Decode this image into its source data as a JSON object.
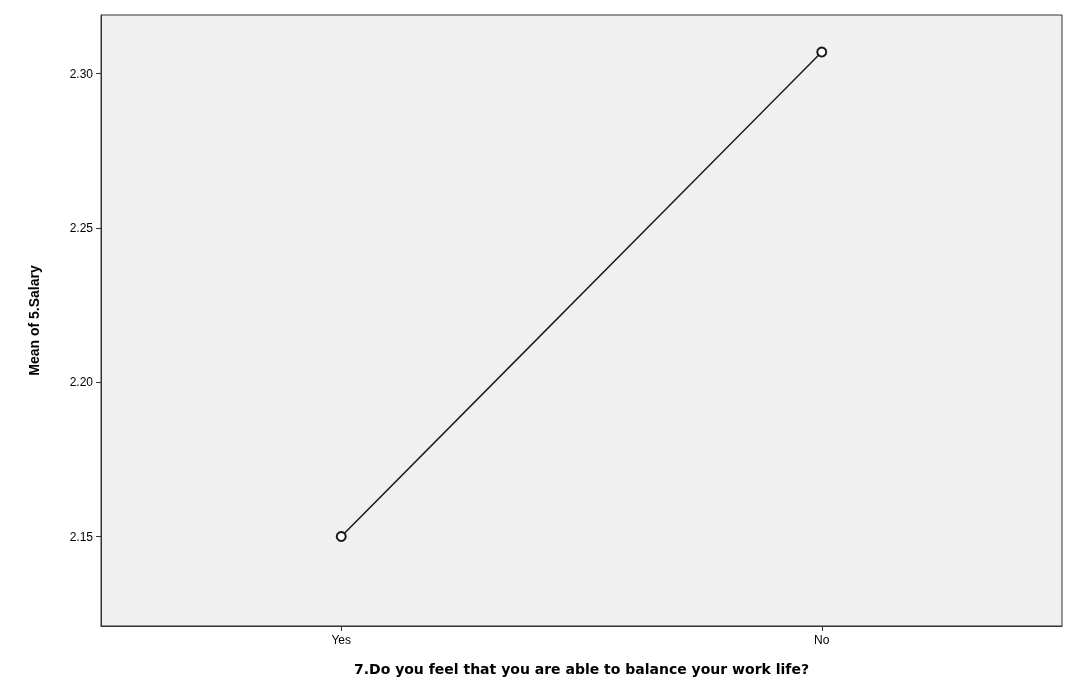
{
  "chart_data": {
    "type": "line",
    "xlabel": "7.Do you feel that you are able to balance your work life?",
    "ylabel": "Mean of 5.Salary",
    "categories": [
      "Yes",
      "No"
    ],
    "series": [
      {
        "color": "#1a1a1a",
        "values": [
          2.15,
          2.307
        ]
      }
    ],
    "ylim": [
      2.121,
      2.319
    ],
    "yticks": [
      {
        "value": 2.15,
        "label": "2.15"
      },
      {
        "value": 2.2,
        "label": "2.20"
      },
      {
        "value": 2.25,
        "label": "2.25"
      },
      {
        "value": 2.3,
        "label": "2.30"
      }
    ],
    "marker": "circle",
    "line_style": "solid",
    "grid": false
  }
}
